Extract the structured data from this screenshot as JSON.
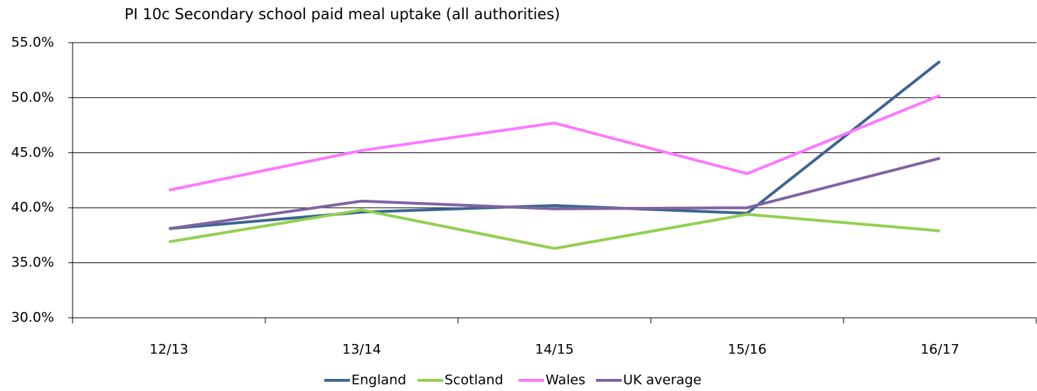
{
  "chart_data": {
    "type": "line",
    "title": "PI 10c Secondary school paid meal uptake (all authorities)",
    "categories": [
      "12/13",
      "13/14",
      "14/15",
      "15/16",
      "16/17"
    ],
    "series": [
      {
        "name": "England",
        "color": "#3d6591",
        "values": [
          38.1,
          39.6,
          40.2,
          39.5,
          53.3
        ]
      },
      {
        "name": "Scotland",
        "color": "#92d050",
        "values": [
          36.9,
          39.8,
          36.3,
          39.4,
          37.9
        ]
      },
      {
        "name": "Wales",
        "color": "#ff77ff",
        "values": [
          41.6,
          45.2,
          47.7,
          43.1,
          50.2
        ]
      },
      {
        "name": "UK average",
        "color": "#8064a2",
        "values": [
          38.1,
          40.6,
          39.9,
          40.0,
          44.5
        ]
      }
    ],
    "ylim": [
      30,
      55
    ],
    "yticks": [
      {
        "value": 30,
        "label": "30.0%"
      },
      {
        "value": 35,
        "label": "35.0%"
      },
      {
        "value": 40,
        "label": "40.0%"
      },
      {
        "value": 45,
        "label": "45.0%"
      },
      {
        "value": 50,
        "label": "50.0%"
      },
      {
        "value": 55,
        "label": "55.0%"
      }
    ],
    "grid": true,
    "legend": "bottom"
  }
}
